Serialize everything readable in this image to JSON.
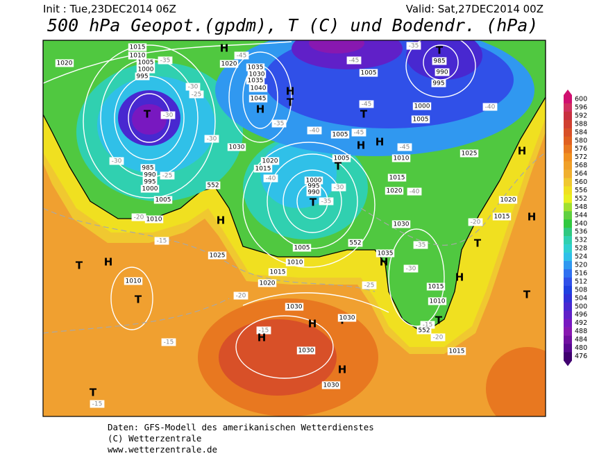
{
  "header": {
    "init": "Init : Tue,23DEC2014 06Z",
    "valid": "Valid: Sat,27DEC2014 00Z",
    "title": "500 hPa Geopot.(gpdm), T (C) und Bodendr. (hPa)"
  },
  "legend": {
    "values": [
      600,
      596,
      592,
      588,
      584,
      580,
      576,
      572,
      568,
      564,
      560,
      556,
      552,
      548,
      544,
      540,
      536,
      532,
      528,
      524,
      520,
      516,
      512,
      508,
      504,
      500,
      496,
      492,
      488,
      484,
      480,
      476
    ],
    "colors": [
      "#d01070",
      "#d03060",
      "#c83040",
      "#d04030",
      "#d85028",
      "#e06020",
      "#e87820",
      "#f09020",
      "#f0a028",
      "#f0b030",
      "#f0c830",
      "#f0e020",
      "#e8f020",
      "#a0e030",
      "#60d040",
      "#30c840",
      "#30c880",
      "#30d0b0",
      "#30d0d0",
      "#30c0e8",
      "#3098f0",
      "#3070f0",
      "#3050e8",
      "#2040e0",
      "#3030d8",
      "#4828d0",
      "#6020c8",
      "#7818c0",
      "#8818b0",
      "#7010a0",
      "#580890",
      "#400070"
    ]
  },
  "map": {
    "labels": [
      1020,
      -45,
      1020,
      -35,
      1035,
      1030,
      1035,
      1040,
      1045,
      "H",
      "H",
      "T",
      -35,
      -30,
      -25,
      -30,
      "T",
      -30,
      985,
      -25,
      990,
      995,
      1000,
      1005,
      1010,
      -20,
      1030,
      -30,
      1020,
      1015,
      -40,
      1000,
      995,
      990,
      "T",
      -30,
      -35,
      1005,
      1010,
      1015,
      1020,
      1025,
      -20,
      "H",
      -40,
      1005,
      -45,
      "T",
      -45,
      "H",
      "H",
      1005,
      "T",
      1010,
      -45,
      -45,
      1005,
      -35,
      "T",
      985,
      990,
      995,
      1000,
      1005,
      -40,
      1025,
      "H",
      1020,
      -40,
      1015,
      1030,
      1035,
      -35,
      -30,
      -25,
      "H",
      1015,
      1010,
      "T",
      -15,
      -20,
      1015,
      "T",
      "H",
      -20,
      1015,
      1020,
      "H",
      "T",
      "T",
      "H",
      -15,
      1010,
      "T",
      -15,
      1030,
      "T",
      1030,
      "H",
      -15,
      "H",
      1030,
      "H",
      1030,
      "T",
      -15,
      552,
      552,
      552,
      "H",
      1015,
      1010,
      1005,
      1000,
      995
    ]
  },
  "footer": {
    "lines": [
      "Daten: GFS-Modell des amerikanischen Wetterdienstes",
      "(C) Wetterzentrale",
      "www.wetterzentrale.de"
    ]
  }
}
